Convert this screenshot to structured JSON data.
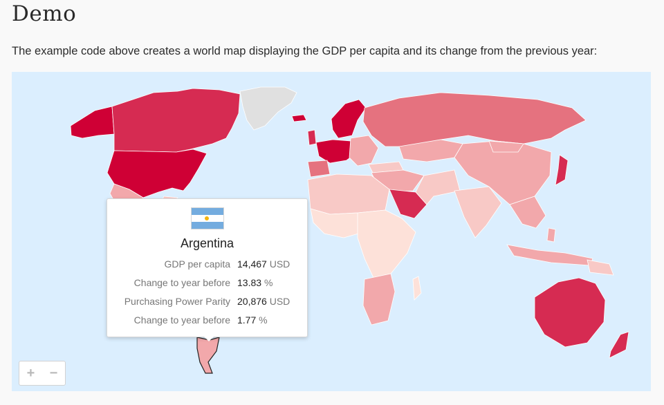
{
  "page": {
    "title": "Demo",
    "intro": "The example code above creates a world map displaying the GDP per capita and its change from the previous year:"
  },
  "map": {
    "background": "#dbeefe",
    "colors": {
      "darkest": "#cf0035",
      "dark": "#d62b52",
      "mid": "#e5727f",
      "light": "#f2a8ab",
      "lighter": "#f8c9c6",
      "lightest": "#fde1d9",
      "nodata": "#e0e0e0"
    },
    "zoom_in": "+",
    "zoom_out": "−"
  },
  "tooltip": {
    "country": "Argentina",
    "flag_icon": "argentina-flag-icon",
    "rows": [
      {
        "label": "GDP per capita",
        "value": "14,467",
        "unit": "USD"
      },
      {
        "label": "Change to year before",
        "value": "13.83",
        "unit": "%"
      },
      {
        "label": "Purchasing Power Parity",
        "value": "20,876",
        "unit": "USD"
      },
      {
        "label": "Change to year before",
        "value": "1.77",
        "unit": "%"
      }
    ]
  }
}
